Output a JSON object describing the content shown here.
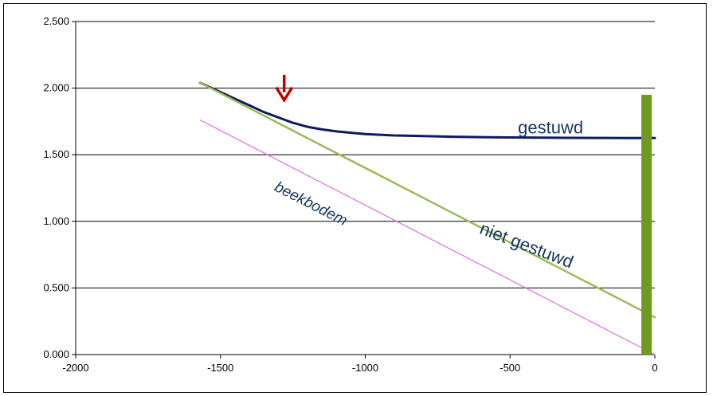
{
  "chart_data": {
    "type": "line",
    "xlim": [
      -2000,
      0
    ],
    "ylim": [
      0,
      2.5
    ],
    "x_ticks": [
      -2000,
      -1500,
      -1000,
      -500,
      0
    ],
    "x_tick_labels": [
      "-2000",
      "-1500",
      "-1000",
      "-500",
      "0"
    ],
    "y_ticks": [
      0,
      0.5,
      1.0,
      1.5,
      2.0,
      2.5
    ],
    "y_tick_labels": [
      "0.000",
      "0.500",
      "1.000",
      "1.500",
      "2.000",
      "2.500"
    ],
    "grid": "horizontal",
    "legend": "none",
    "series": [
      {
        "color": "#0d1b5e",
        "x": [
          -1570,
          -1500,
          -1450,
          -1400,
          -1350,
          -1300,
          -1250,
          -1200,
          -1150,
          -1100,
          -1050,
          -1000,
          -900,
          -800,
          -700,
          -600,
          -500,
          -400,
          -300,
          -200,
          -100,
          0
        ],
        "y": [
          2.04,
          1.97,
          1.92,
          1.87,
          1.82,
          1.78,
          1.74,
          1.71,
          1.69,
          1.675,
          1.665,
          1.655,
          1.645,
          1.64,
          1.635,
          1.632,
          1.63,
          1.628,
          1.627,
          1.626,
          1.625,
          1.625
        ]
      },
      {
        "color": "#9bbb59",
        "x": [
          -1570,
          0
        ],
        "y": [
          2.04,
          0.28
        ]
      },
      {
        "color": "#e070e0",
        "x": [
          -1570,
          0
        ],
        "y": [
          1.76,
          0.0
        ]
      }
    ],
    "annotations": [
      {
        "text": "gestuwd",
        "x": -360,
        "y": 1.66,
        "rotate": 0,
        "size": 22
      },
      {
        "text": "niet gestuwd",
        "x": -450,
        "y": 0.78,
        "rotate": 21,
        "size": 22
      },
      {
        "text": "beekbodem",
        "x": -1195,
        "y": 1.1,
        "rotate": 27,
        "size": 19
      }
    ],
    "arrow": {
      "x": -1280,
      "y_from": 2.1,
      "y_to": 1.91,
      "color": "#c00000"
    },
    "side_bar": {
      "x": -30,
      "y_from": 0.0,
      "y_to": 1.95,
      "color": "#6f9a1f"
    }
  }
}
